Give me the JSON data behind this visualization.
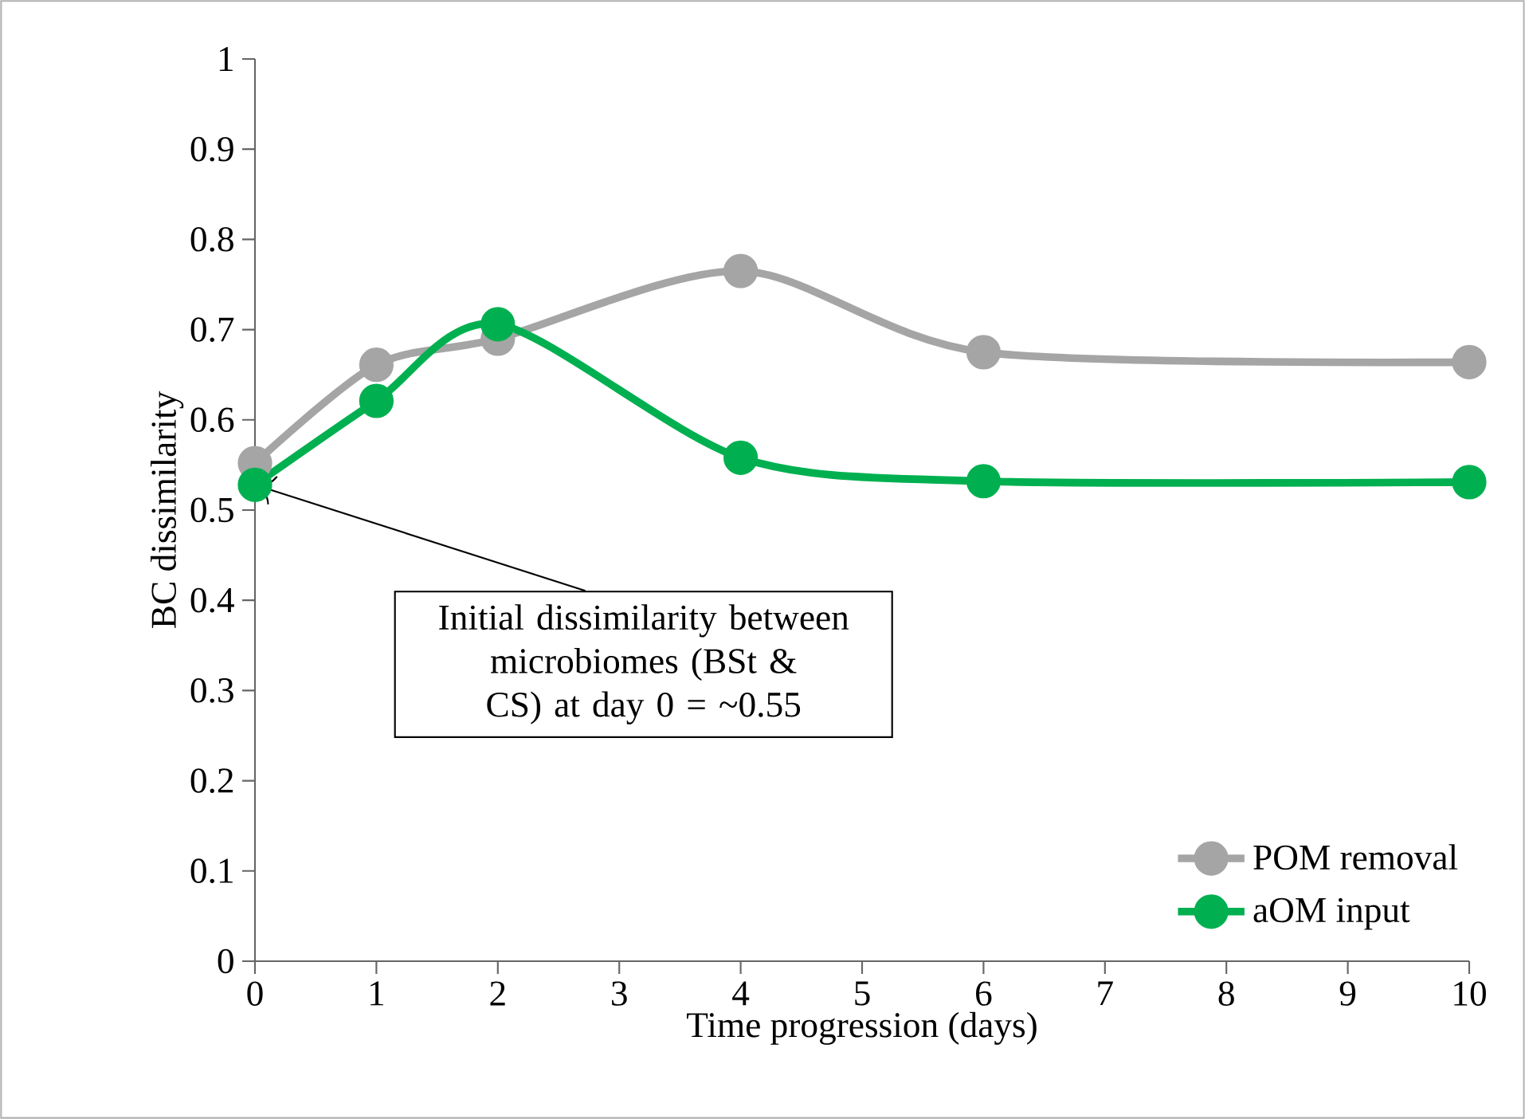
{
  "chart_data": {
    "type": "line",
    "xlabel": "Time progression (days)",
    "ylabel": "BC dissimilarity",
    "xlim": [
      0,
      10
    ],
    "xticks": [
      0,
      1,
      2,
      3,
      4,
      5,
      6,
      7,
      8,
      9,
      10
    ],
    "ylim": [
      0,
      1
    ],
    "yticks": [
      0,
      0.1,
      0.2,
      0.3,
      0.4,
      0.5,
      0.6,
      0.7,
      0.8,
      0.9,
      1
    ],
    "marker": "circle",
    "line_style": "solid",
    "legend": "bottom right",
    "grid": false,
    "series": [
      {
        "name": "POM removal",
        "color": "#a5a5a5",
        "x": [
          0,
          1,
          2,
          4,
          6,
          10
        ],
        "values": [
          0.552,
          0.661,
          0.69,
          0.765,
          0.675,
          0.664
        ]
      },
      {
        "name": "aOM input",
        "color": "#00b050",
        "x": [
          0,
          1,
          2,
          4,
          6,
          10
        ],
        "values": [
          0.528,
          0.621,
          0.706,
          0.558,
          0.532,
          0.531
        ]
      }
    ],
    "annotations": [
      {
        "text": "Initial dissimilarity between microbiomes (BSt & CS) at day 0 = ~0.55",
        "x": 0,
        "y": 0.528
      }
    ]
  }
}
